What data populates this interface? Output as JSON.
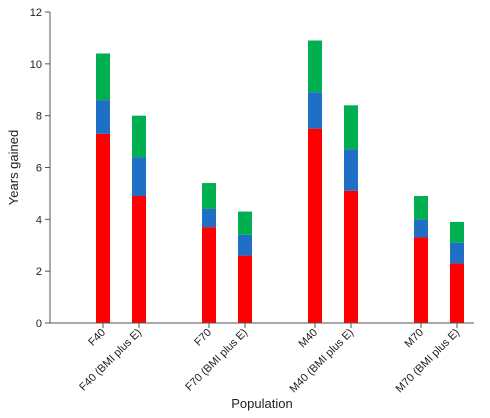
{
  "chart_data": {
    "type": "bar",
    "stacked": true,
    "categories": [
      "F40",
      "F40 (BMI plus E)",
      "F70",
      "F70 (BMI plus E)",
      "M40",
      "M40 (BMI plus E)",
      "M70",
      "M70 (BMI plus E)"
    ],
    "groups": [
      [
        "F40",
        "F40 (BMI plus E)"
      ],
      [
        "F70",
        "F70 (BMI plus E)"
      ],
      [
        "M40",
        "M40 (BMI plus E)"
      ],
      [
        "M70",
        "M70 (BMI plus E)"
      ]
    ],
    "series": [
      {
        "color": "#ff0000",
        "values": [
          7.3,
          4.9,
          3.7,
          2.6,
          7.5,
          5.1,
          3.3,
          2.3
        ]
      },
      {
        "color": "#1f6fc6",
        "values": [
          1.3,
          1.5,
          0.7,
          0.8,
          1.4,
          1.6,
          0.7,
          0.8
        ]
      },
      {
        "color": "#00b050",
        "values": [
          1.8,
          1.6,
          1.0,
          0.9,
          2.0,
          1.7,
          0.9,
          0.8
        ]
      }
    ],
    "xlabel": "Population",
    "ylabel": "Years gained",
    "ylim": [
      0,
      12
    ],
    "yticks": [
      0,
      2,
      4,
      6,
      8,
      10,
      12
    ],
    "grid": false,
    "legend": "none"
  }
}
